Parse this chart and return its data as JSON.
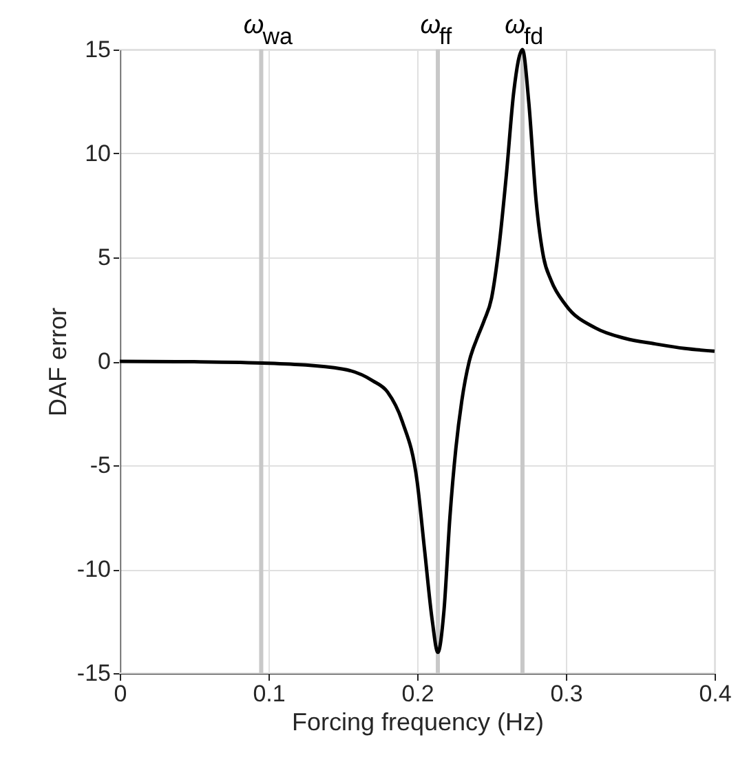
{
  "chart_data": {
    "type": "line",
    "xlabel": "Forcing frequency (Hz)",
    "ylabel": "DAF error",
    "x": [
      0,
      0.05,
      0.1,
      0.15,
      0.17,
      0.18,
      0.19,
      0.2,
      0.205,
      0.21,
      0.2139,
      0.218,
      0.222,
      0.226,
      0.23,
      0.235,
      0.24,
      0.245,
      0.25,
      0.255,
      0.26,
      0.265,
      0.2708,
      0.275,
      0.28,
      0.285,
      0.29,
      0.3,
      0.32,
      0.34,
      0.36,
      0.38,
      0.4
    ],
    "series": [
      {
        "color": "#000000",
        "values": [
          0,
          -0.02,
          -0.09,
          -0.37,
          -0.93,
          -1.47,
          -2.9,
          -5.8,
          -9.1,
          -12.4,
          -14.0,
          -12.0,
          -7.5,
          -4.2,
          -1.9,
          0,
          1.06,
          1.96,
          3.04,
          5.5,
          9.0,
          13.0,
          15.0,
          12.5,
          7.7,
          5.0,
          3.9,
          2.7,
          1.6,
          1.1,
          0.84,
          0.62,
          0.49
        ]
      }
    ],
    "xlim": [
      0,
      0.4
    ],
    "xticks": [
      0,
      0.1,
      0.2,
      0.3,
      0.4
    ],
    "ylim": [
      -15,
      15
    ],
    "yticks": [
      -15,
      -10,
      -5,
      0,
      5,
      10,
      15
    ],
    "grid": true,
    "marker": "none",
    "line_style": "solid",
    "ref_lines": [
      {
        "axis": "x",
        "value": 0.0951,
        "label": "ω$_{wa}$",
        "color": "#c8c8c8"
      },
      {
        "axis": "x",
        "value": 0.2139,
        "label": "ω$_{ff}$",
        "color": "#c8c8c8"
      },
      {
        "axis": "x",
        "value": 0.2708,
        "label": "ω$_{fd}$",
        "color": "#c8c8c8"
      }
    ]
  }
}
